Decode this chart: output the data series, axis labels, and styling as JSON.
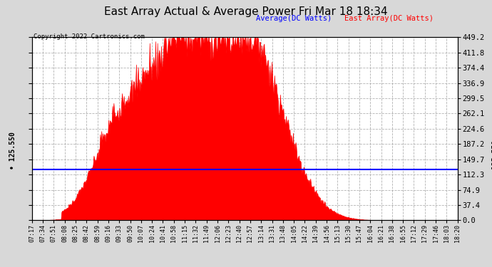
{
  "title": "East Array Actual & Average Power Fri Mar 18 18:34",
  "copyright": "Copyright 2022 Cartronics.com",
  "legend_average": "Average(DC Watts)",
  "legend_east": "East Array(DC Watts)",
  "average_value": 125.55,
  "y_max": 449.2,
  "y_min": 0.0,
  "y_ticks": [
    0.0,
    37.4,
    74.9,
    112.3,
    149.7,
    187.2,
    224.6,
    262.1,
    299.5,
    336.9,
    374.4,
    411.8,
    449.2
  ],
  "x_labels": [
    "07:17",
    "07:34",
    "07:51",
    "08:08",
    "08:25",
    "08:42",
    "08:59",
    "09:16",
    "09:33",
    "09:50",
    "10:07",
    "10:24",
    "10:41",
    "10:58",
    "11:15",
    "11:32",
    "11:49",
    "12:06",
    "12:23",
    "12:40",
    "12:57",
    "13:14",
    "13:31",
    "13:48",
    "14:05",
    "14:22",
    "14:39",
    "14:56",
    "15:13",
    "15:30",
    "15:47",
    "16:04",
    "16:21",
    "16:38",
    "16:55",
    "17:12",
    "17:29",
    "17:46",
    "18:03",
    "18:20"
  ],
  "background_color": "#d8d8d8",
  "plot_bg_color": "#ffffff",
  "grid_color": "#aaaaaa",
  "area_color": "#ff0000",
  "line_color": "#0000ff",
  "title_color": "#000000",
  "avg_label": "125.550"
}
